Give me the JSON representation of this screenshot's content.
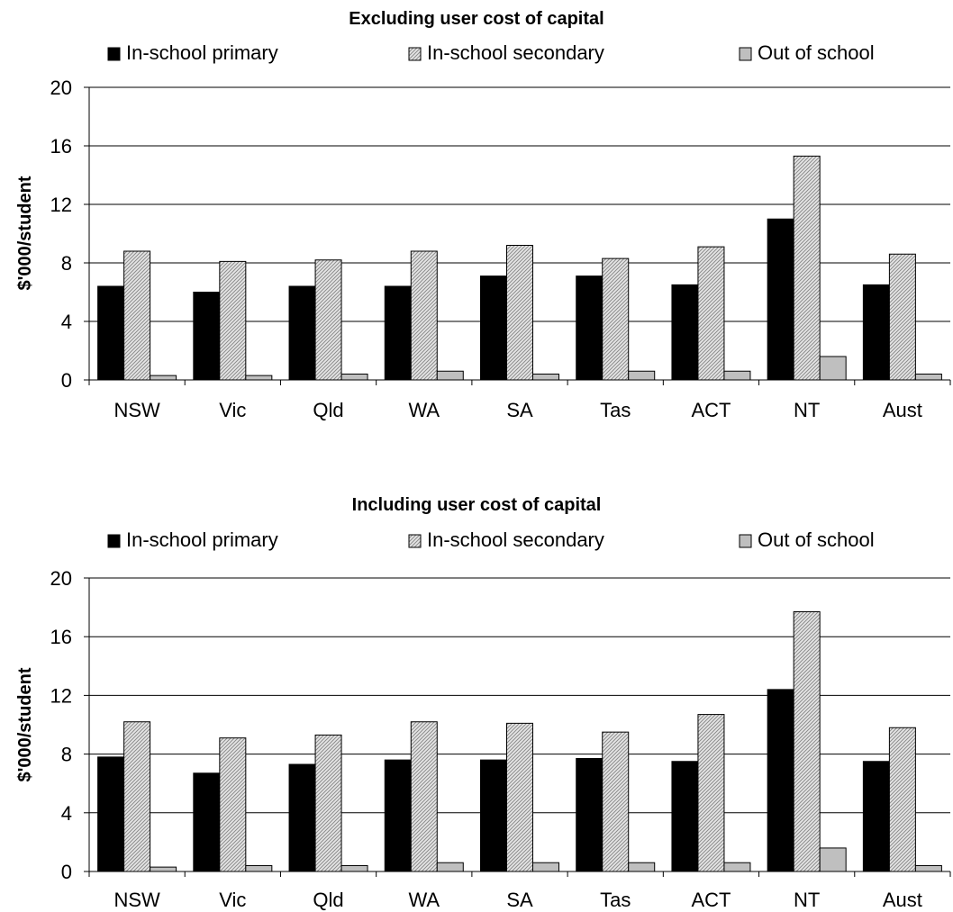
{
  "chart_data": [
    {
      "type": "bar",
      "title": "Excluding user cost of capital",
      "ylabel": "$'000/student",
      "xlabel": "",
      "ylim": [
        0,
        20
      ],
      "yticks": [
        0,
        4,
        8,
        12,
        16,
        20
      ],
      "ytick_labels": [
        "0",
        "4",
        "8",
        "12",
        "16",
        "20"
      ],
      "grid": true,
      "legend_position": "top",
      "categories": [
        "NSW",
        "Vic",
        "Qld",
        "WA",
        "SA",
        "Tas",
        "ACT",
        "NT",
        "Aust"
      ],
      "series": [
        {
          "name": "In-school primary",
          "values": [
            6.4,
            6.0,
            6.4,
            6.4,
            7.1,
            7.1,
            6.5,
            11.0,
            6.5
          ]
        },
        {
          "name": "In-school secondary",
          "values": [
            8.8,
            8.1,
            8.2,
            8.8,
            9.2,
            8.3,
            9.1,
            15.3,
            8.6
          ]
        },
        {
          "name": "Out of school",
          "values": [
            0.3,
            0.3,
            0.4,
            0.6,
            0.4,
            0.6,
            0.6,
            1.6,
            0.4
          ]
        }
      ]
    },
    {
      "type": "bar",
      "title": "Including user cost of capital",
      "ylabel": "$'000/student",
      "xlabel": "",
      "ylim": [
        0,
        20
      ],
      "yticks": [
        0,
        4,
        8,
        12,
        16,
        20
      ],
      "ytick_labels": [
        "0",
        "4",
        "8",
        "12",
        "16",
        "20"
      ],
      "grid": true,
      "legend_position": "top",
      "categories": [
        "NSW",
        "Vic",
        "Qld",
        "WA",
        "SA",
        "Tas",
        "ACT",
        "NT",
        "Aust"
      ],
      "series": [
        {
          "name": "In-school primary",
          "values": [
            7.8,
            6.7,
            7.3,
            7.6,
            7.6,
            7.7,
            7.5,
            12.4,
            7.5
          ]
        },
        {
          "name": "In-school secondary",
          "values": [
            10.2,
            9.1,
            9.3,
            10.2,
            10.1,
            9.5,
            10.7,
            17.7,
            9.8
          ]
        },
        {
          "name": "Out of school",
          "values": [
            0.3,
            0.4,
            0.4,
            0.6,
            0.6,
            0.6,
            0.6,
            1.6,
            0.4
          ]
        }
      ]
    }
  ],
  "series_styles": [
    {
      "fill": "#000000",
      "pattern": "solid"
    },
    {
      "fill": "#d9d9d9",
      "pattern": "diagonal-hatch"
    },
    {
      "fill": "#bfbfbf",
      "pattern": "solid"
    }
  ],
  "colors": {
    "axis": "#000000",
    "grid": "#000000",
    "bar_stroke": "#000000"
  }
}
